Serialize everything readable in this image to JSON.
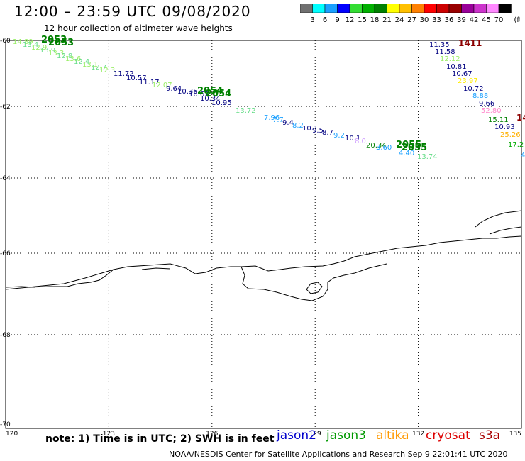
{
  "title": "12:00 – 23:59 UTC 09/08/2020",
  "subtitle": "12 hour collection of altimeter wave heights",
  "colorbar": {
    "unit": "(ft)",
    "colors": [
      "#707070",
      "#00ffff",
      "#1aa0ff",
      "#0000ff",
      "#33dd33",
      "#00b000",
      "#008000",
      "#ffff00",
      "#ffc000",
      "#ff8000",
      "#ff0000",
      "#cc0000",
      "#990000",
      "#990099",
      "#cc33cc",
      "#ff88ff",
      "#000000"
    ],
    "labels": [
      "3",
      "6",
      "9",
      "12",
      "15",
      "18",
      "21",
      "24",
      "27",
      "30",
      "33",
      "36",
      "39",
      "42",
      "45",
      "70"
    ]
  },
  "map": {
    "lon_ticks": [
      "120",
      "123",
      "126",
      "129",
      "132",
      "135"
    ],
    "lat_ticks": [
      "-60",
      "-62",
      "-64",
      "-66",
      "-68",
      "-70"
    ],
    "lon_range": [
      120,
      135
    ],
    "lat_range": [
      -60,
      -70
    ]
  },
  "annotations": [
    {
      "text": "2053",
      "color": "#008000",
      "bold": true
    },
    {
      "text": "2053",
      "color": "#008000",
      "bold": true
    },
    {
      "text": "11.72",
      "color": "#000080"
    },
    {
      "text": "10.57",
      "color": "#000080"
    },
    {
      "text": "11.17",
      "color": "#000080"
    },
    {
      "text": "2054",
      "color": "#008000",
      "bold": true
    },
    {
      "text": "2054",
      "color": "#008000",
      "bold": true
    },
    {
      "text": "13.72",
      "color": "#66dd88"
    },
    {
      "text": "2055",
      "color": "#008000",
      "bold": true
    },
    {
      "text": "2055",
      "color": "#008000",
      "bold": true
    },
    {
      "text": "20.34",
      "color": "#008000"
    },
    {
      "text": "13.74",
      "color": "#66dd88"
    },
    {
      "text": "11.35",
      "color": "#000080"
    },
    {
      "text": "1411",
      "color": "#8b0000",
      "bold": true
    },
    {
      "text": "11.58",
      "color": "#000080"
    },
    {
      "text": "12.12",
      "color": "#99ee66"
    },
    {
      "text": "10.81",
      "color": "#000080"
    },
    {
      "text": "10.67",
      "color": "#000080"
    },
    {
      "text": "23.97",
      "color": "#ffee00"
    },
    {
      "text": "10.72",
      "color": "#000080"
    },
    {
      "text": "8.88",
      "color": "#1aa0ff"
    },
    {
      "text": "9.66",
      "color": "#000080"
    },
    {
      "text": "52.80",
      "color": "#ff88cc"
    },
    {
      "text": "15.11",
      "color": "#008000"
    },
    {
      "text": "10.93",
      "color": "#000080"
    },
    {
      "text": "25.26",
      "color": "#ffb000"
    },
    {
      "text": "17.2",
      "color": "#00aa00"
    },
    {
      "text": "14",
      "color": "#8b0000",
      "bold": true
    },
    {
      "text": "7.96",
      "color": "#1aa0ff"
    }
  ],
  "note": "note: 1) Time is in UTC; 2) SWH is in feet",
  "legend": [
    {
      "name": "jason2",
      "color": "#0000cc"
    },
    {
      "name": "jason3",
      "color": "#009900"
    },
    {
      "name": "altika",
      "color": "#ff9900"
    },
    {
      "name": "cryosat",
      "color": "#dd0000"
    },
    {
      "name": "s3a",
      "color": "#aa0000"
    }
  ],
  "credit": "NOAA/NESDIS Center for Satellite Applications and Research    Sep  9 22:01:41 UTC 2020"
}
